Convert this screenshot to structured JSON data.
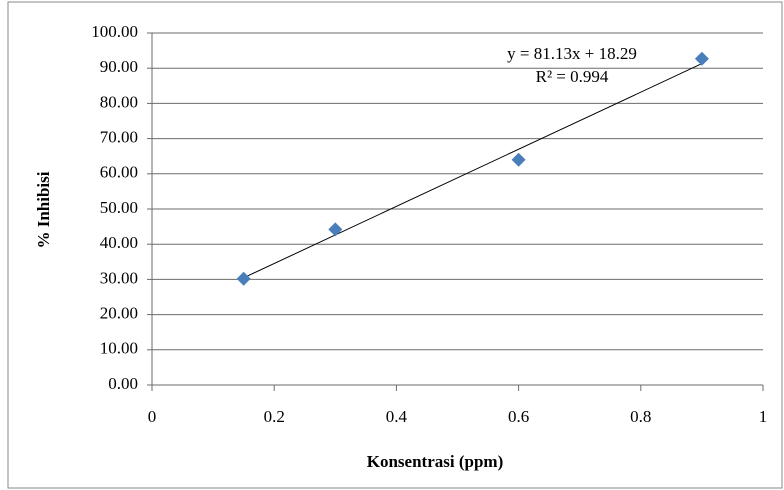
{
  "chart_data": {
    "type": "scatter",
    "x_label": "Konsentrasi (ppm)",
    "y_label": "% Inhibisi",
    "x": [
      0.15,
      0.3,
      0.6,
      0.9
    ],
    "values": [
      30.2,
      44.2,
      64.0,
      92.7
    ],
    "color": "#4a7ebb",
    "xlim": [
      0,
      1
    ],
    "xticks": [
      0,
      0.2,
      0.4,
      0.6,
      0.8,
      1
    ],
    "ylim": [
      0,
      100
    ],
    "yticks": [
      {
        "value": 0,
        "label": "0.00"
      },
      {
        "value": 10,
        "label": "10.00"
      },
      {
        "value": 20,
        "label": "20.00"
      },
      {
        "value": 30,
        "label": "30.00"
      },
      {
        "value": 40,
        "label": "40.00"
      },
      {
        "value": 50,
        "label": "50.00"
      },
      {
        "value": 60,
        "label": "60.00"
      },
      {
        "value": 70,
        "label": "70.00"
      },
      {
        "value": 80,
        "label": "80.00"
      },
      {
        "value": 90,
        "label": "90.00"
      },
      {
        "value": 100,
        "label": "100.00"
      }
    ],
    "grid": true,
    "trendline": {
      "equation": "y = 81.13x + 18.29",
      "r2_label": "R² = 0.994",
      "slope": 81.13,
      "intercept": 18.29
    }
  }
}
